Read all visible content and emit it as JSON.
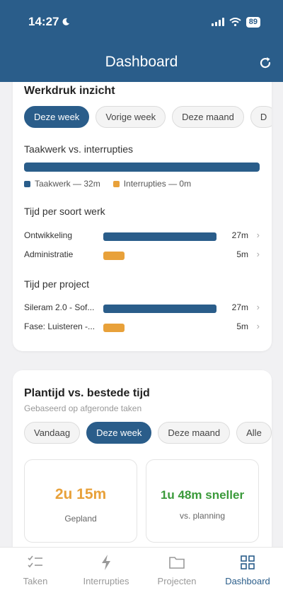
{
  "status_bar": {
    "time": "14:27",
    "battery": "89"
  },
  "header": {
    "title": "Dashboard"
  },
  "workload": {
    "title": "Werkdruk inzicht",
    "periods": [
      "Deze week",
      "Vorige week",
      "Deze maand",
      "D"
    ],
    "active_period": "Deze week",
    "task_vs_interrupt": {
      "label": "Taakwerk vs. interrupties",
      "taakwerk_legend": "Taakwerk — 32m",
      "interrupties_legend": "Interrupties — 0m",
      "taakwerk_minutes": 32,
      "interrupties_minutes": 0
    },
    "by_work_type": {
      "label": "Tijd per soort werk",
      "rows": [
        {
          "name": "Ontwikkeling",
          "value": "27m",
          "minutes": 27,
          "color": "#2a5d8a"
        },
        {
          "name": "Administratie",
          "value": "5m",
          "minutes": 5,
          "color": "#e8a13a"
        }
      ]
    },
    "by_project": {
      "label": "Tijd per project",
      "rows": [
        {
          "name": "Sileram 2.0 - Sof...",
          "value": "27m",
          "minutes": 27,
          "color": "#2a5d8a"
        },
        {
          "name": "Fase: Luisteren -...",
          "value": "5m",
          "minutes": 5,
          "color": "#e8a13a"
        }
      ]
    }
  },
  "plan": {
    "title": "Plantijd vs. bestede tijd",
    "subtitle": "Gebaseerd op afgeronde taken",
    "periods": [
      "Vandaag",
      "Deze week",
      "Deze maand",
      "Alle"
    ],
    "active_period": "Deze week",
    "planned": {
      "value": "2u 15m",
      "label": "Gepland"
    },
    "delta": {
      "value": "1u 48m sneller",
      "label": "vs. planning"
    }
  },
  "tabs": [
    {
      "label": "Taken",
      "icon": "checklist-icon"
    },
    {
      "label": "Interrupties",
      "icon": "lightning-icon"
    },
    {
      "label": "Projecten",
      "icon": "folder-icon"
    },
    {
      "label": "Dashboard",
      "icon": "dashboard-grid-icon",
      "active": true
    }
  ],
  "colors": {
    "primary": "#2a5d8a",
    "accent_orange": "#e8a13a",
    "success_green": "#3a9a3a"
  }
}
